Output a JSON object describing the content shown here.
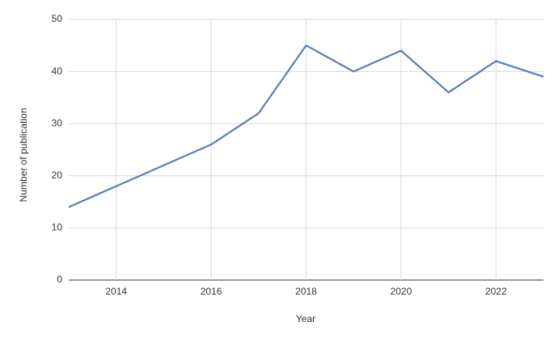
{
  "chart_data": {
    "type": "line",
    "x_label": "Year",
    "y_label": "Number of publication",
    "x": [
      2013,
      2014,
      2015,
      2016,
      2017,
      2018,
      2019,
      2020,
      2021,
      2022,
      2023
    ],
    "series": [
      {
        "name": "Publications",
        "color": "#5b7db5",
        "values": [
          14,
          18,
          22,
          26,
          32,
          45,
          40,
          44,
          36,
          42,
          39
        ]
      }
    ],
    "xlim": [
      2013,
      2023
    ],
    "xticks": [
      2014,
      2016,
      2018,
      2020,
      2022
    ],
    "ylim": [
      0,
      50
    ],
    "yticks": [
      0,
      10,
      20,
      30,
      40,
      50
    ],
    "grid": true
  }
}
